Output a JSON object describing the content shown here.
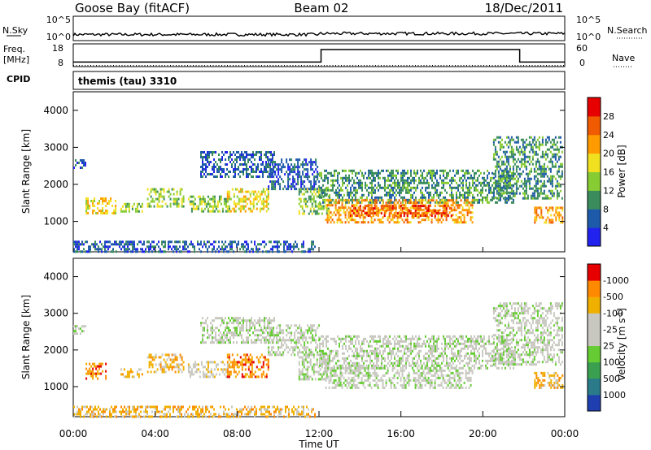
{
  "header": {
    "station": "Goose Bay (fitACF)",
    "beam": "Beam 02",
    "date": "18/Dec/2011"
  },
  "nsky_panel": {
    "left_label": "N.Sky",
    "left_ticks": [
      "10^5",
      "10^0"
    ],
    "right_label": "N.Search",
    "right_ticks": [
      "10^5",
      "10^0"
    ],
    "baseline_fraction": 0.25
  },
  "freq_panel": {
    "left_label_lines": [
      "Freq.",
      "[MHz]"
    ],
    "left_ticks": [
      "18",
      "8"
    ],
    "right_ticks": [
      "60",
      "0"
    ],
    "right_label": "Nave",
    "freq_low_mhz": 10,
    "freq_high_mhz": 15.5,
    "freq_high_start_hour": 12.1,
    "freq_high_end_hour": 21.8
  },
  "cpid": {
    "label": "CPID",
    "value": "themis (tau) 3310"
  },
  "xaxis": {
    "ticks": [
      "00:00",
      "04:00",
      "08:00",
      "12:00",
      "16:00",
      "20:00",
      "00:00"
    ],
    "title": "Time UT"
  },
  "chart_data": [
    {
      "type": "heatmap",
      "title": "",
      "xlabel": "Time UT",
      "ylabel": "Slant Range [km]",
      "xlim_hours": [
        0,
        24
      ],
      "ylim_km": [
        180,
        4500
      ],
      "y_ticks": [
        1000,
        2000,
        3000,
        4000
      ],
      "colorbar": {
        "label": "Power [dB]",
        "tick_labels": [
          "4",
          "8",
          "12",
          "16",
          "20",
          "24",
          "28"
        ],
        "colors": [
          "#2222ee",
          "#1e5aaa",
          "#3a8c5c",
          "#88cc33",
          "#f0e020",
          "#ff9a00",
          "#f05a00",
          "#e60000"
        ]
      },
      "echo_regions": [
        {
          "t0": 0.0,
          "t1": 0.6,
          "r0": 2480,
          "r1": 2680,
          "level": 1
        },
        {
          "t0": 0.6,
          "t1": 2.1,
          "r0": 1250,
          "r1": 1650,
          "level": 4
        },
        {
          "t0": 2.3,
          "t1": 3.4,
          "r0": 1250,
          "r1": 1500,
          "level": 3
        },
        {
          "t0": 3.6,
          "t1": 5.4,
          "r0": 1400,
          "r1": 1900,
          "level": 3
        },
        {
          "t0": 5.6,
          "t1": 7.6,
          "r0": 1300,
          "r1": 1700,
          "level": 3
        },
        {
          "t0": 6.2,
          "t1": 9.8,
          "r0": 2200,
          "r1": 2900,
          "level": 1
        },
        {
          "t0": 7.5,
          "t1": 9.5,
          "r0": 1300,
          "r1": 1900,
          "level": 4
        },
        {
          "t0": 9.5,
          "t1": 12.0,
          "r0": 1900,
          "r1": 2700,
          "level": 1
        },
        {
          "t0": 11.0,
          "t1": 12.5,
          "r0": 1200,
          "r1": 1900,
          "level": 3
        },
        {
          "t0": 12.0,
          "t1": 21.5,
          "r0": 1500,
          "r1": 2400,
          "level": 2
        },
        {
          "t0": 12.3,
          "t1": 19.5,
          "r0": 1000,
          "r1": 1600,
          "level": 5
        },
        {
          "t0": 13.5,
          "t1": 18.5,
          "r0": 1150,
          "r1": 1450,
          "level": 6
        },
        {
          "t0": 20.5,
          "t1": 23.9,
          "r0": 1600,
          "r1": 3300,
          "level": 2
        },
        {
          "t0": 22.5,
          "t1": 23.9,
          "r0": 950,
          "r1": 1400,
          "level": 5
        },
        {
          "t0": 0.0,
          "t1": 11.8,
          "r0": 200,
          "r1": 480,
          "level": 1
        }
      ]
    },
    {
      "type": "heatmap",
      "title": "",
      "xlabel": "Time UT",
      "ylabel": "Slant Range [km]",
      "xlim_hours": [
        0,
        24
      ],
      "ylim_km": [
        180,
        4500
      ],
      "y_ticks": [
        1000,
        2000,
        3000,
        4000
      ],
      "colorbar": {
        "label": "Velocity [m s^-1]",
        "tick_labels": [
          "1000",
          "500",
          "100",
          "25",
          "-25",
          "-100",
          "-500",
          "-1000"
        ],
        "colors": [
          "#1f3fb0",
          "#2a7a8a",
          "#3aa050",
          "#66cc33",
          "#c8c8c0",
          "#c8c8c0",
          "#f0b000",
          "#ff8a00",
          "#e60000"
        ]
      },
      "echo_regions": [
        {
          "t0": 0.0,
          "t1": 0.6,
          "r0": 2480,
          "r1": 2680,
          "level": 4
        },
        {
          "t0": 0.6,
          "t1": 1.6,
          "r0": 1200,
          "r1": 1650,
          "level": 7
        },
        {
          "t0": 2.3,
          "t1": 3.4,
          "r0": 1250,
          "r1": 1500,
          "level": 6
        },
        {
          "t0": 3.6,
          "t1": 5.4,
          "r0": 1400,
          "r1": 1900,
          "level": 6
        },
        {
          "t0": 5.6,
          "t1": 7.6,
          "r0": 1300,
          "r1": 1700,
          "level": 5
        },
        {
          "t0": 6.2,
          "t1": 9.8,
          "r0": 2200,
          "r1": 2900,
          "level": 4
        },
        {
          "t0": 7.5,
          "t1": 9.5,
          "r0": 1300,
          "r1": 1900,
          "level": 7
        },
        {
          "t0": 9.5,
          "t1": 12.0,
          "r0": 1900,
          "r1": 2700,
          "level": 4
        },
        {
          "t0": 11.0,
          "t1": 12.5,
          "r0": 1200,
          "r1": 1900,
          "level": 4
        },
        {
          "t0": 12.0,
          "t1": 21.5,
          "r0": 1500,
          "r1": 2400,
          "level": 4
        },
        {
          "t0": 12.3,
          "t1": 19.5,
          "r0": 1000,
          "r1": 1600,
          "level": 4
        },
        {
          "t0": 20.5,
          "t1": 23.9,
          "r0": 1600,
          "r1": 3300,
          "level": 4
        },
        {
          "t0": 22.5,
          "t1": 23.9,
          "r0": 950,
          "r1": 1400,
          "level": 6
        },
        {
          "t0": 0.0,
          "t1": 11.8,
          "r0": 200,
          "r1": 480,
          "level": 6
        }
      ]
    }
  ]
}
